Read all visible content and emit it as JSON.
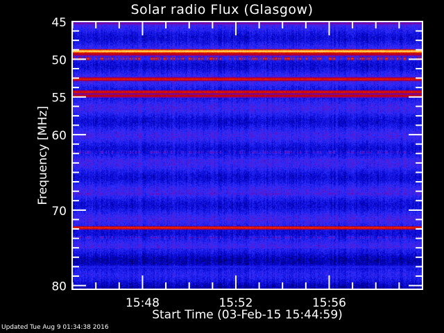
{
  "chart_data": {
    "type": "heatmap",
    "title": "Solar radio Flux (Glasgow)",
    "xlabel": "Start Time (03-Feb-15 15:44:59)",
    "ylabel": "Frequency [MHz]",
    "x_ticks": [
      "15:48",
      "15:52",
      "15:56"
    ],
    "y_ticks": [
      "45",
      "50",
      "55",
      "60",
      "70",
      "80"
    ],
    "x_range": [
      "15:44:59",
      "16:00:00"
    ],
    "ylim": [
      45,
      80.5
    ],
    "y_inverted": true,
    "colormap": [
      "#000000",
      "#0000c8",
      "#3030ff",
      "#8000a0",
      "#c00000",
      "#ff3000",
      "#ffb000",
      "#ffffc0"
    ],
    "bands": [
      {
        "freq_mhz": 45.2,
        "level": 0.45
      },
      {
        "freq_mhz": 48.9,
        "level": 1.0
      },
      {
        "freq_mhz": 49.3,
        "level": 0.6
      },
      {
        "freq_mhz": 49.9,
        "level": 0.75,
        "bursty": true
      },
      {
        "freq_mhz": 52.6,
        "level": 0.7
      },
      {
        "freq_mhz": 54.3,
        "level": 0.68
      },
      {
        "freq_mhz": 54.8,
        "level": 0.62
      },
      {
        "freq_mhz": 62.3,
        "level": 0.4,
        "bursty": true
      },
      {
        "freq_mhz": 63.3,
        "level": 0.35,
        "bursty": true
      },
      {
        "freq_mhz": 67.8,
        "level": 0.4,
        "bursty": true
      },
      {
        "freq_mhz": 72.3,
        "level": 0.72
      },
      {
        "freq_mhz": 73.6,
        "level": 0.4,
        "bursty": true
      },
      {
        "freq_mhz": 77.5,
        "level": 0.25
      }
    ]
  },
  "footer": {
    "updated": "Updated Tue Aug  9 01:34:38 2016"
  }
}
